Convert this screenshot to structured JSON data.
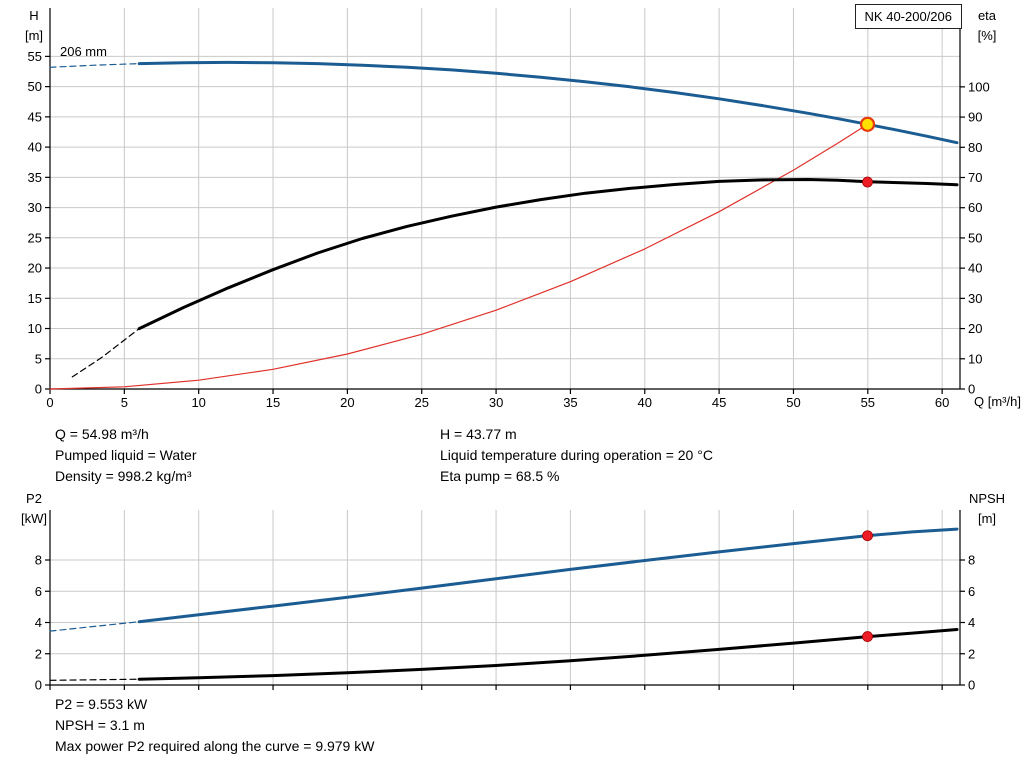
{
  "labels": {
    "pump_type": "NK 40-200/206",
    "impeller": "206 mm"
  },
  "chart_data": [
    {
      "id": "hq-eta",
      "type": "line",
      "grid_color": "#c9c9c9",
      "axis_color": "#000000",
      "x": {
        "label": "Q [m³/h]",
        "min": 0,
        "max": 61.2,
        "ticks": [
          0,
          5,
          10,
          15,
          20,
          25,
          30,
          35,
          40,
          45,
          50,
          55,
          60
        ],
        "show_labels": true
      },
      "y_left": {
        "name": "H",
        "unit": "[m]",
        "min": 0,
        "max": 63,
        "ticks": [
          0,
          5,
          10,
          15,
          20,
          25,
          30,
          35,
          40,
          45,
          50,
          55
        ]
      },
      "y_right": {
        "name": "eta",
        "unit": "[%]",
        "min": 0,
        "max": 126.1,
        "ticks": [
          0,
          10,
          20,
          30,
          40,
          50,
          60,
          70,
          80,
          90,
          100
        ]
      },
      "series": [
        {
          "name": "head-curve-extrapolation",
          "axis": "left",
          "color": "#1b5c93",
          "width": 1.2,
          "dash": "6,4",
          "points": [
            [
              0,
              53.2
            ],
            [
              3,
              53.55
            ],
            [
              6,
              53.8
            ]
          ]
        },
        {
          "name": "eta-curve-extrapolation",
          "axis": "right",
          "color": "#000000",
          "width": 1.2,
          "dash": "6,4",
          "points": [
            [
              1.5,
              4
            ],
            [
              3.5,
              10.5
            ],
            [
              6,
              20
            ]
          ]
        },
        {
          "name": "system-curve",
          "axis": "left",
          "color": "#e0312a",
          "width": 1.2,
          "dash": null,
          "points": [
            [
              0,
              0
            ],
            [
              5,
              0.36
            ],
            [
              10,
              1.45
            ],
            [
              15,
              3.26
            ],
            [
              20,
              5.79
            ],
            [
              25,
              9.05
            ],
            [
              30,
              13.03
            ],
            [
              35,
              17.74
            ],
            [
              40,
              23.17
            ],
            [
              45,
              29.32
            ],
            [
              50,
              36.2
            ],
            [
              53,
              40.67
            ],
            [
              54.98,
              43.77
            ]
          ]
        },
        {
          "name": "eta-curve",
          "axis": "right",
          "color": "#000000",
          "width": 3,
          "dash": null,
          "points": [
            [
              6,
              20
            ],
            [
              9,
              27
            ],
            [
              12,
              33.5
            ],
            [
              15,
              39.5
            ],
            [
              18,
              45
            ],
            [
              21,
              49.8
            ],
            [
              24,
              53.8
            ],
            [
              27,
              57.2
            ],
            [
              30,
              60.2
            ],
            [
              33,
              62.7
            ],
            [
              36,
              64.8
            ],
            [
              39,
              66.4
            ],
            [
              42,
              67.7
            ],
            [
              45,
              68.7
            ],
            [
              48,
              69.2
            ],
            [
              51,
              69.35
            ],
            [
              53,
              69.1
            ],
            [
              55,
              68.6
            ],
            [
              57,
              68.3
            ],
            [
              59,
              68
            ],
            [
              61,
              67.6
            ]
          ]
        },
        {
          "name": "head-curve",
          "axis": "left",
          "color": "#1b5c93",
          "width": 3,
          "dash": null,
          "points": [
            [
              6,
              53.8
            ],
            [
              9,
              53.95
            ],
            [
              12,
              54
            ],
            [
              15,
              53.95
            ],
            [
              18,
              53.8
            ],
            [
              21,
              53.55
            ],
            [
              24,
              53.2
            ],
            [
              27,
              52.76
            ],
            [
              30,
              52.21
            ],
            [
              33,
              51.56
            ],
            [
              36,
              50.81
            ],
            [
              39,
              49.97
            ],
            [
              42,
              49.03
            ],
            [
              45,
              47.98
            ],
            [
              48,
              46.83
            ],
            [
              51,
              45.59
            ],
            [
              53,
              44.7
            ],
            [
              54.98,
              43.77
            ],
            [
              57,
              42.8
            ],
            [
              59,
              41.78
            ],
            [
              61,
              40.72
            ]
          ]
        }
      ],
      "markers": [
        {
          "name": "eta-operating-point",
          "axis": "right",
          "q": 54.98,
          "v": 68.5,
          "r": 5,
          "fill": "#ec1c24",
          "stroke": "#a00000",
          "stroke_width": 0.8
        },
        {
          "name": "duty-point",
          "axis": "left",
          "q": 54.98,
          "v": 43.77,
          "r": 6.5,
          "fill": "#ffe000",
          "stroke": "#e8380d",
          "stroke_width": 2.2
        }
      ]
    },
    {
      "id": "p2-npsh",
      "type": "line",
      "grid_color": "#c9c9c9",
      "axis_color": "#000000",
      "x": {
        "label": "",
        "min": 0,
        "max": 61.2,
        "ticks": [
          0,
          5,
          10,
          15,
          20,
          25,
          30,
          35,
          40,
          45,
          50,
          55,
          60
        ],
        "show_labels": false
      },
      "y_left": {
        "name": "P2",
        "unit": "[kW]",
        "min": 0,
        "max": 11.2,
        "ticks": [
          0,
          2,
          4,
          6,
          8
        ]
      },
      "y_right": {
        "name": "NPSH",
        "unit": "[m]",
        "min": 0,
        "max": 11.2,
        "ticks": [
          0,
          2,
          4,
          6,
          8
        ]
      },
      "series": [
        {
          "name": "p2-curve-extrapolation",
          "axis": "left",
          "color": "#1b5c93",
          "width": 1.2,
          "dash": "6,4",
          "points": [
            [
              0,
              3.45
            ],
            [
              3,
              3.75
            ],
            [
              6,
              4.05
            ]
          ]
        },
        {
          "name": "npsh-curve-extrapolation",
          "axis": "right",
          "color": "#000000",
          "width": 1.2,
          "dash": "6,4",
          "points": [
            [
              0,
              0.3
            ],
            [
              6,
              0.37
            ]
          ]
        },
        {
          "name": "p2-curve",
          "axis": "left",
          "color": "#1b5c93",
          "width": 3,
          "dash": null,
          "points": [
            [
              6,
              4.05
            ],
            [
              10,
              4.5
            ],
            [
              15,
              5.05
            ],
            [
              20,
              5.62
            ],
            [
              25,
              6.2
            ],
            [
              30,
              6.8
            ],
            [
              35,
              7.4
            ],
            [
              40,
              7.97
            ],
            [
              45,
              8.52
            ],
            [
              50,
              9.05
            ],
            [
              55,
              9.56
            ],
            [
              58,
              9.8
            ],
            [
              61,
              9.98
            ]
          ]
        },
        {
          "name": "npsh-curve",
          "axis": "right",
          "color": "#000000",
          "width": 3,
          "dash": null,
          "points": [
            [
              6,
              0.37
            ],
            [
              10,
              0.46
            ],
            [
              15,
              0.6
            ],
            [
              20,
              0.78
            ],
            [
              25,
              1
            ],
            [
              30,
              1.25
            ],
            [
              35,
              1.55
            ],
            [
              40,
              1.9
            ],
            [
              45,
              2.28
            ],
            [
              50,
              2.68
            ],
            [
              55,
              3.1
            ],
            [
              58,
              3.32
            ],
            [
              61,
              3.55
            ]
          ]
        }
      ],
      "markers": [
        {
          "name": "p2-operating-point",
          "axis": "left",
          "q": 54.98,
          "v": 9.553,
          "r": 5,
          "fill": "#ec1c24",
          "stroke": "#a00000",
          "stroke_width": 0.8
        },
        {
          "name": "npsh-operating-point",
          "axis": "right",
          "q": 54.98,
          "v": 3.1,
          "r": 5,
          "fill": "#ec1c24",
          "stroke": "#a00000",
          "stroke_width": 0.8
        }
      ]
    }
  ],
  "operating_info": {
    "left": [
      "Q = 54.98 m³/h",
      "Pumped liquid = Water",
      "Density = 998.2 kg/m³"
    ],
    "right": [
      "H = 43.77 m",
      "Liquid temperature during operation = 20 °C",
      "Eta pump = 68.5 %"
    ]
  },
  "power_info": [
    "P2 = 9.553 kW",
    "NPSH = 3.1 m",
    "Max power P2 required along the curve = 9.979 kW"
  ]
}
